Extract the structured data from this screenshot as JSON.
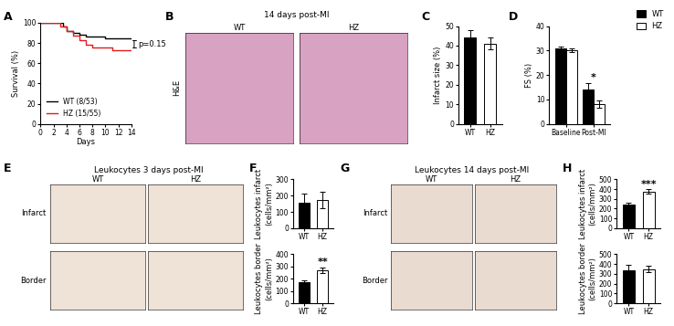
{
  "chart_data": [
    {
      "type": "line",
      "panel": "A",
      "xlabel": "Days",
      "ylabel": "Survival (%)",
      "x": [
        0,
        3,
        3.5,
        4,
        5,
        6,
        7,
        8,
        10,
        11,
        14
      ],
      "series": [
        {
          "name": "WT (8/53)",
          "color": "#000000",
          "line_style": "steps",
          "values": [
            100,
            100,
            96,
            92,
            90,
            88,
            86,
            86,
            85,
            85,
            85
          ]
        },
        {
          "name": "HZ (15/55)",
          "color": "#e41a1c",
          "line_style": "steps",
          "values": [
            100,
            96,
            96,
            92,
            87,
            83,
            78,
            76,
            76,
            73,
            73
          ]
        }
      ],
      "xlim": [
        0,
        14
      ],
      "xticks": [
        0,
        2,
        4,
        6,
        8,
        10,
        12,
        14
      ],
      "ylim": [
        0,
        100
      ],
      "yticks": [
        0,
        20,
        40,
        60,
        80,
        100
      ],
      "legend": "lower left",
      "annotations": [
        {
          "text": "p=0.15"
        }
      ]
    },
    {
      "type": "image",
      "panel": "B",
      "title": "14 days post-MI",
      "columns": [
        "WT",
        "HZ"
      ],
      "rows": [
        "H&E"
      ]
    },
    {
      "type": "bar",
      "panel": "C",
      "ylabel": "Infarct size (%)",
      "categories": [
        "WT",
        "HZ"
      ],
      "values": [
        44,
        41
      ],
      "errors": [
        4,
        3
      ],
      "colors": [
        "#000000",
        "#ffffff"
      ],
      "ylim": [
        0,
        50
      ],
      "yticks": [
        0,
        10,
        20,
        30,
        40,
        50
      ]
    },
    {
      "type": "bar",
      "panel": "D",
      "ylabel": "FS (%)",
      "categories": [
        "Baseline",
        "Post-MI"
      ],
      "series": [
        {
          "name": "WT",
          "color": "#000000",
          "values": [
            31,
            14
          ],
          "errors": [
            0.5,
            2.5
          ]
        },
        {
          "name": "HZ",
          "color": "#ffffff",
          "values": [
            30,
            8
          ],
          "errors": [
            0.8,
            1.5
          ]
        }
      ],
      "ylim": [
        0,
        40
      ],
      "yticks": [
        0,
        10,
        20,
        30,
        40
      ],
      "legend": "upper right",
      "annotations": [
        {
          "text": "*",
          "category": "Post-MI"
        }
      ]
    },
    {
      "type": "image",
      "panel": "E",
      "title": "Leukocytes 3 days post-MI",
      "columns": [
        "WT",
        "HZ"
      ],
      "rows": [
        "Infarct",
        "Border"
      ]
    },
    {
      "type": "bar",
      "panel": "F",
      "ylabel": "Leukocytes infarct\n(cells/mm²)",
      "categories": [
        "WT",
        "HZ"
      ],
      "values": [
        155,
        175
      ],
      "errors": [
        60,
        50
      ],
      "colors": [
        "#000000",
        "#ffffff"
      ],
      "ylim": [
        0,
        300
      ],
      "yticks": [
        0,
        100,
        200,
        300
      ]
    },
    {
      "type": "bar",
      "ylabel": "Leukocytes border\n(cells/mm²)",
      "categories": [
        "WT",
        "HZ"
      ],
      "values": [
        175,
        270
      ],
      "errors": [
        10,
        25
      ],
      "colors": [
        "#000000",
        "#ffffff"
      ],
      "ylim": [
        0,
        400
      ],
      "yticks": [
        0,
        100,
        200,
        300,
        400
      ],
      "annotations": [
        {
          "text": "**",
          "category": "HZ"
        }
      ]
    },
    {
      "type": "image",
      "panel": "G",
      "title": "Leukocytes 14 days post-MI",
      "columns": [
        "WT",
        "HZ"
      ],
      "rows": [
        "Infarct",
        "Border"
      ]
    },
    {
      "type": "bar",
      "panel": "H",
      "ylabel": "Leukocytes infarct\n(cells/mm²)",
      "categories": [
        "WT",
        "HZ"
      ],
      "values": [
        240,
        375
      ],
      "errors": [
        20,
        25
      ],
      "colors": [
        "#000000",
        "#ffffff"
      ],
      "ylim": [
        0,
        500
      ],
      "yticks": [
        0,
        100,
        200,
        300,
        400,
        500
      ],
      "annotations": [
        {
          "text": "***",
          "category": "HZ"
        }
      ]
    },
    {
      "type": "bar",
      "ylabel": "Leukocytes border\n(cells/mm²)",
      "categories": [
        "WT",
        "HZ"
      ],
      "values": [
        340,
        350
      ],
      "errors": [
        50,
        35
      ],
      "colors": [
        "#000000",
        "#ffffff"
      ],
      "ylim": [
        0,
        500
      ],
      "yticks": [
        0,
        100,
        200,
        300,
        400,
        500
      ]
    }
  ]
}
